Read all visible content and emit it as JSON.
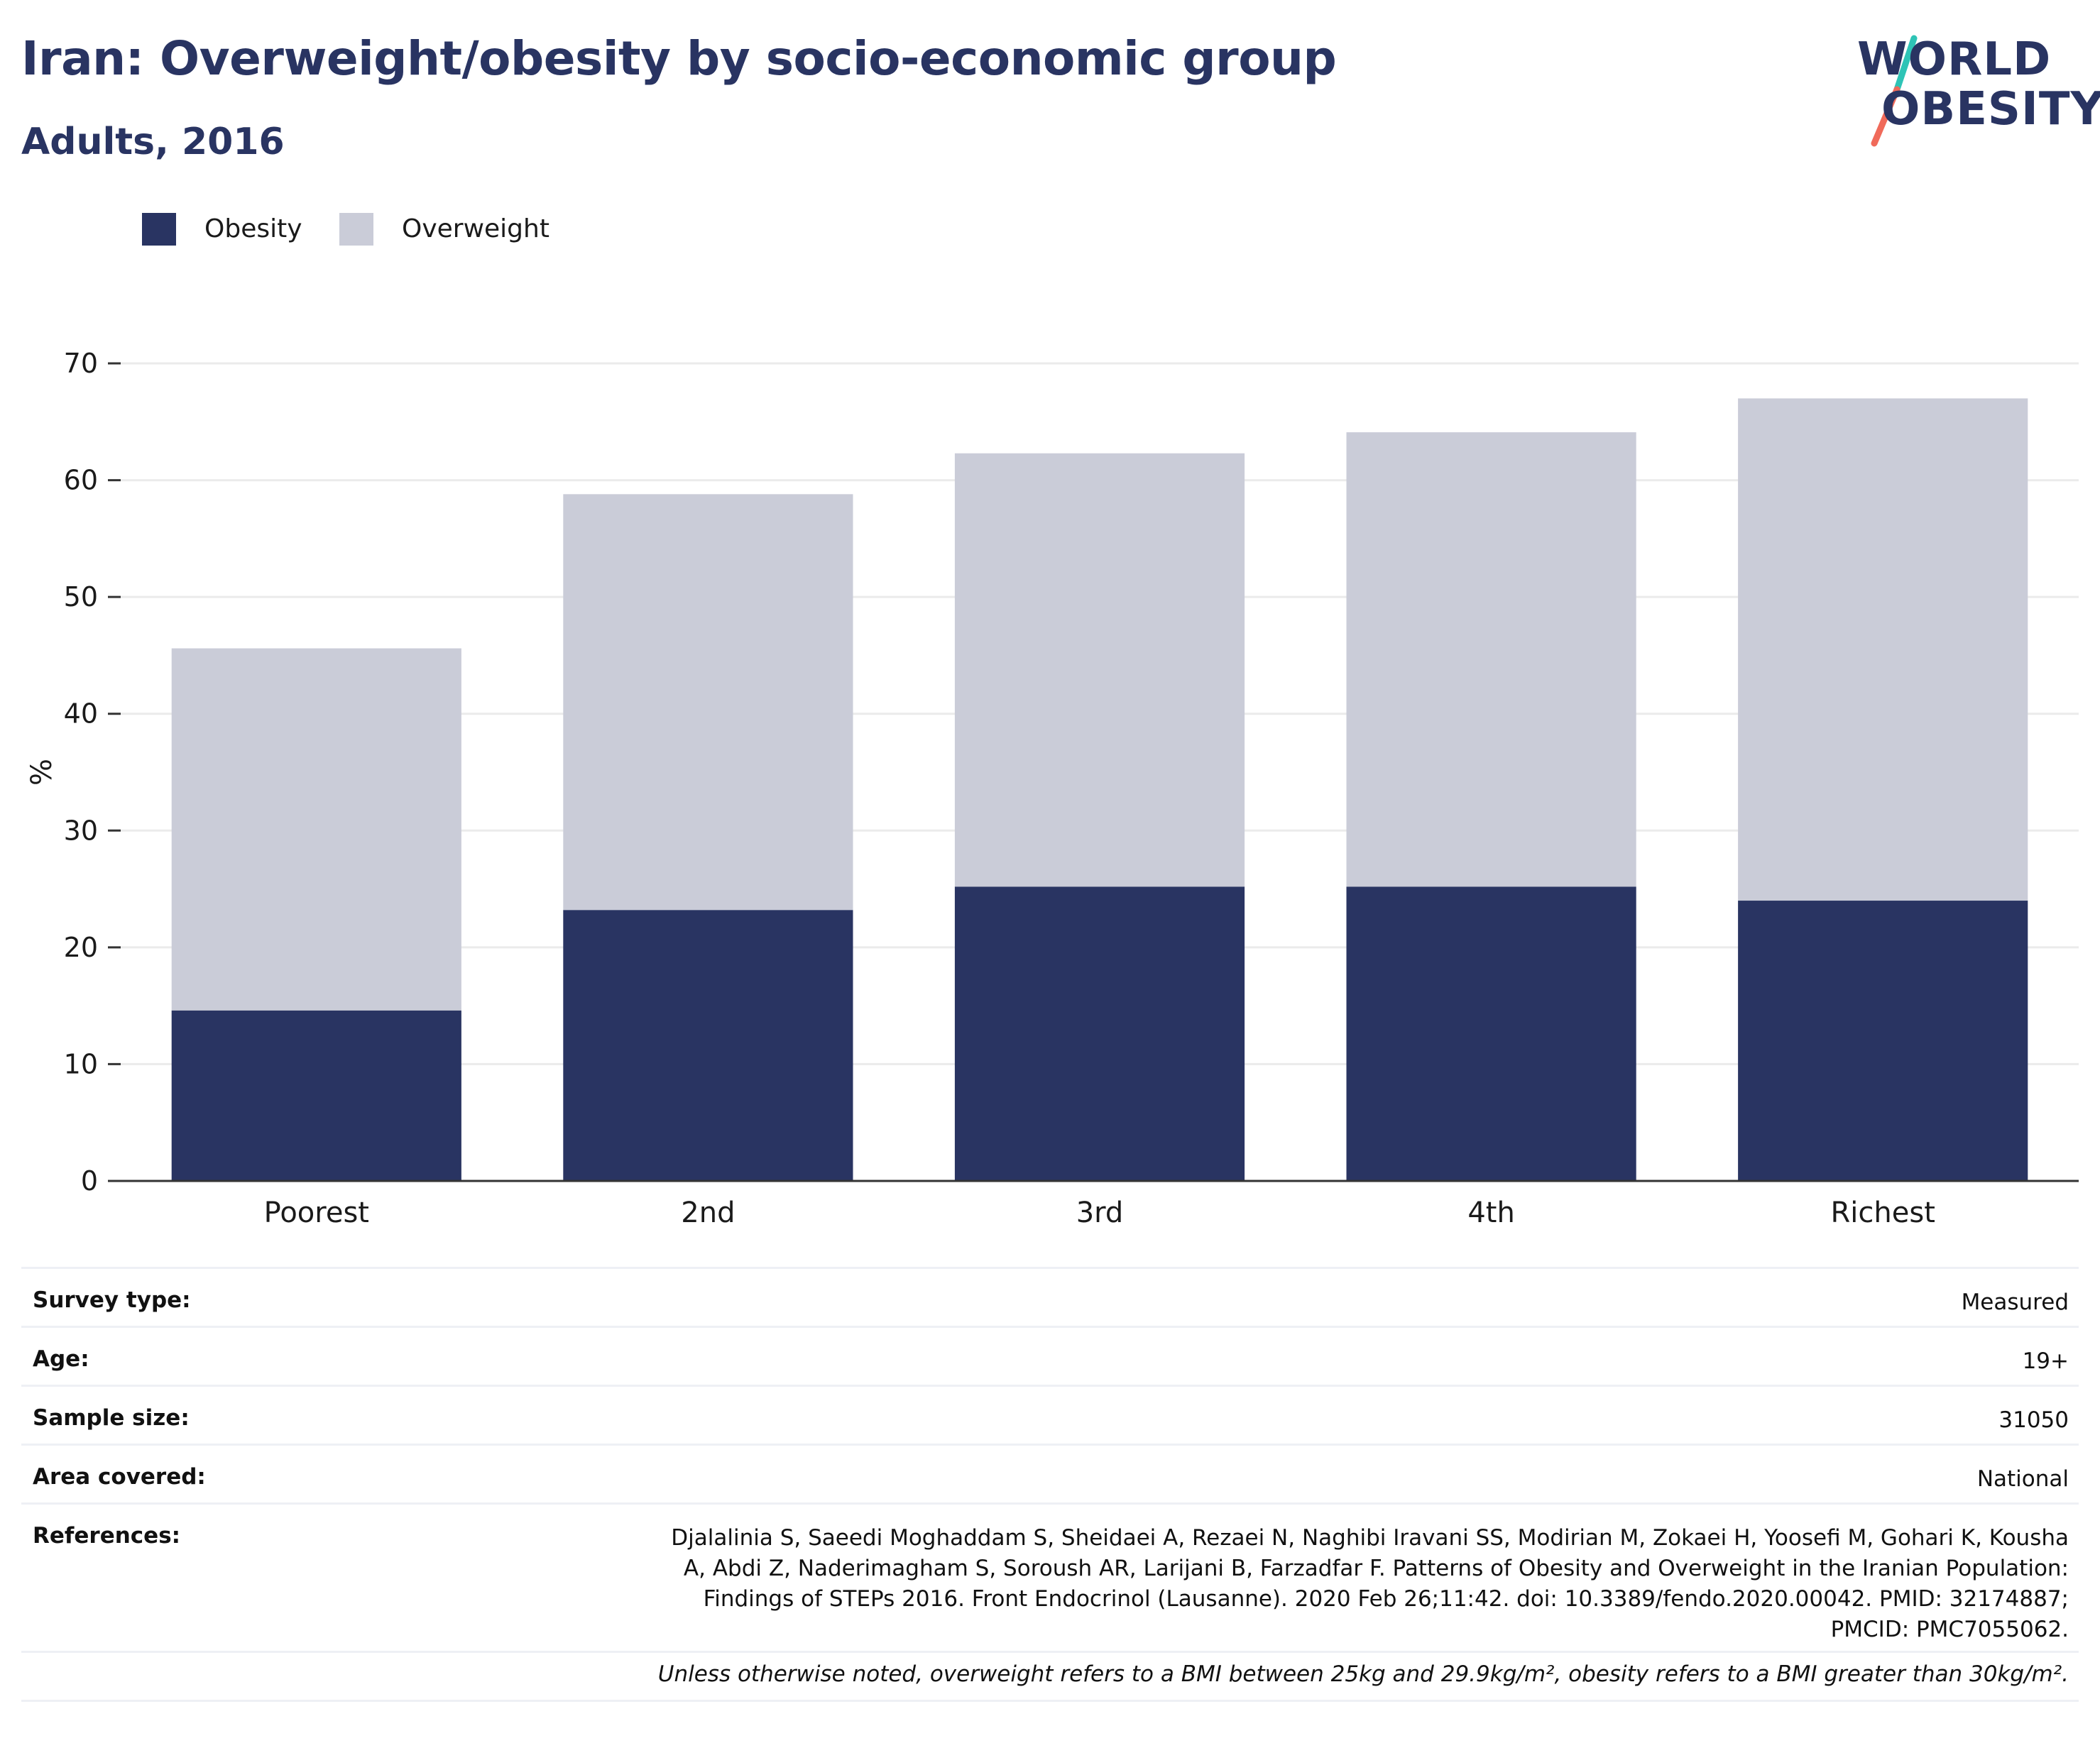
{
  "header": {
    "title": "Iran: Overweight/obesity by socio-economic group",
    "subtitle": "Adults, 2016"
  },
  "logo": {
    "line1": "WORLD",
    "line2": "OBESITY"
  },
  "legend": {
    "obesity_label": "Obesity",
    "overweight_label": "Overweight"
  },
  "colors": {
    "obesity": "#293462",
    "overweight": "#CACCD8",
    "logo_teal": "#2EC4B6",
    "logo_coral": "#F06A5A"
  },
  "chart_data": {
    "type": "bar",
    "stacked": true,
    "categories": [
      "Poorest",
      "2nd",
      "3rd",
      "4th",
      "Richest"
    ],
    "series": [
      {
        "name": "Obesity",
        "values": [
          14.6,
          23.2,
          25.2,
          25.2,
          24.0
        ]
      },
      {
        "name": "Overweight",
        "values": [
          31.0,
          35.6,
          37.1,
          38.9,
          43.0
        ]
      }
    ],
    "title": "",
    "xlabel": "",
    "ylabel": "%",
    "ylim": [
      0,
      70
    ],
    "yticks": [
      0,
      10,
      20,
      30,
      40,
      50,
      60,
      70
    ],
    "grid": true,
    "legend_position": "top-left"
  },
  "info": {
    "survey_type": {
      "label": "Survey type:",
      "value": "Measured"
    },
    "age": {
      "label": "Age:",
      "value": "19+"
    },
    "sample_size": {
      "label": "Sample size:",
      "value": "31050"
    },
    "area_covered": {
      "label": "Area covered:",
      "value": "National"
    },
    "references": {
      "label": "References:",
      "value": "Djalalinia S, Saeedi Moghaddam S, Sheidaei A, Rezaei N, Naghibi Iravani SS, Modirian M, Zokaei H, Yoosefi M, Gohari K, Kousha A, Abdi Z, Naderimagham S, Soroush AR, Larijani B, Farzadfar F. Patterns of Obesity and Overweight in the Iranian Population: Findings of STEPs 2016. Front Endocrinol (Lausanne). 2020 Feb 26;11:42. doi: 10.3389/fendo.2020.00042. PMID: 32174887; PMCID: PMC7055062."
    },
    "note": "Unless otherwise noted, overweight refers to a BMI between 25kg and 29.9kg/m², obesity refers to a BMI greater than 30kg/m²."
  }
}
